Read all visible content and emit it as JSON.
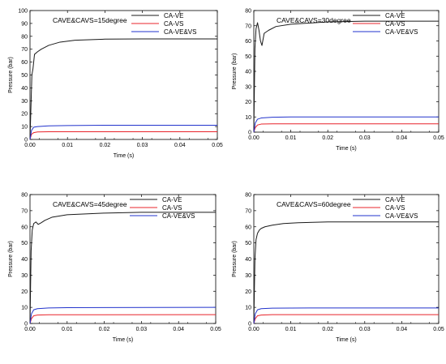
{
  "colors": {
    "CA-VE": "#1a1a1a",
    "CA-VS": "#e8242b",
    "CA-VE&VS": "#2233cc",
    "axis": "#000000"
  },
  "chart_data": [
    {
      "type": "line",
      "annotation": "CAVE&CAVS=15degree",
      "xlabel": "Time (s)",
      "ylabel": "Pressure (bar)",
      "xlim": [
        0,
        0.05
      ],
      "ylim": [
        0,
        100
      ],
      "xticks": [
        "0.00",
        "0.01",
        "0.02",
        "0.03",
        "0.04",
        "0.05"
      ],
      "yticks": [
        "0",
        "10",
        "20",
        "30",
        "40",
        "50",
        "60",
        "70",
        "80",
        "90",
        "100"
      ],
      "legend_position": "top-right",
      "series": [
        {
          "name": "CA-VE",
          "points": [
            [
              0,
              0
            ],
            [
              0.0002,
              20
            ],
            [
              0.0005,
              50
            ],
            [
              0.0008,
              55
            ],
            [
              0.0012,
              66
            ],
            [
              0.002,
              68
            ],
            [
              0.003,
              70
            ],
            [
              0.005,
              73
            ],
            [
              0.008,
              75.5
            ],
            [
              0.012,
              77
            ],
            [
              0.02,
              77.8
            ],
            [
              0.03,
              78
            ],
            [
              0.05,
              78
            ]
          ]
        },
        {
          "name": "CA-VS",
          "points": [
            [
              0,
              0
            ],
            [
              0.0004,
              4
            ],
            [
              0.001,
              5.3
            ],
            [
              0.002,
              5.8
            ],
            [
              0.005,
              6
            ],
            [
              0.05,
              6
            ]
          ]
        },
        {
          "name": "CA-VE&VS",
          "points": [
            [
              0,
              0
            ],
            [
              0.0004,
              7
            ],
            [
              0.001,
              9.5
            ],
            [
              0.002,
              10
            ],
            [
              0.005,
              10.5
            ],
            [
              0.01,
              10.8
            ],
            [
              0.02,
              11
            ],
            [
              0.05,
              11
            ]
          ]
        }
      ]
    },
    {
      "type": "line",
      "annotation": "CAVE&CAVS=30degree",
      "xlabel": "Time (s)",
      "ylabel": "Pressure (bar)",
      "xlim": [
        0,
        0.05
      ],
      "ylim": [
        0,
        80
      ],
      "xticks": [
        "0.00",
        "0.01",
        "0.02",
        "0.03",
        "0.04",
        "0.05"
      ],
      "yticks": [
        "0",
        "10",
        "20",
        "30",
        "40",
        "50",
        "60",
        "70",
        "80"
      ],
      "legend_position": "top-right",
      "series": [
        {
          "name": "CA-VE",
          "points": [
            [
              0,
              0
            ],
            [
              0.0003,
              55
            ],
            [
              0.0006,
              68
            ],
            [
              0.001,
              72
            ],
            [
              0.0014,
              67
            ],
            [
              0.0018,
              60
            ],
            [
              0.0022,
              57
            ],
            [
              0.0028,
              65
            ],
            [
              0.004,
              67
            ],
            [
              0.006,
              69.5
            ],
            [
              0.01,
              71
            ],
            [
              0.02,
              72.5
            ],
            [
              0.03,
              73
            ],
            [
              0.05,
              73
            ]
          ]
        },
        {
          "name": "CA-VS",
          "points": [
            [
              0,
              0
            ],
            [
              0.0004,
              3
            ],
            [
              0.001,
              4.7
            ],
            [
              0.002,
              5.3
            ],
            [
              0.005,
              5.5
            ],
            [
              0.05,
              5.5
            ]
          ]
        },
        {
          "name": "CA-VE&VS",
          "points": [
            [
              0,
              0
            ],
            [
              0.0004,
              6
            ],
            [
              0.001,
              8.5
            ],
            [
              0.002,
              9.3
            ],
            [
              0.005,
              9.8
            ],
            [
              0.01,
              10
            ],
            [
              0.05,
              10
            ]
          ]
        }
      ]
    },
    {
      "type": "line",
      "annotation": "CAVE&CAVS=45degree",
      "xlabel": "Time (s)",
      "ylabel": "Pressure (bar)",
      "xlim": [
        0,
        0.05
      ],
      "ylim": [
        0,
        80
      ],
      "xticks": [
        "0.00",
        "0.01",
        "0.02",
        "0.03",
        "0.04",
        "0.05"
      ],
      "yticks": [
        "0",
        "10",
        "20",
        "30",
        "40",
        "50",
        "60",
        "70",
        "80"
      ],
      "legend_position": "top-right",
      "series": [
        {
          "name": "CA-VE",
          "points": [
            [
              0,
              0
            ],
            [
              0.0003,
              45
            ],
            [
              0.0006,
              58
            ],
            [
              0.001,
              62
            ],
            [
              0.0016,
              63
            ],
            [
              0.0022,
              61.5
            ],
            [
              0.003,
              62.5
            ],
            [
              0.004,
              64
            ],
            [
              0.006,
              66
            ],
            [
              0.01,
              67.5
            ],
            [
              0.02,
              68.5
            ],
            [
              0.03,
              69
            ],
            [
              0.05,
              69
            ]
          ]
        },
        {
          "name": "CA-VS",
          "points": [
            [
              0,
              0
            ],
            [
              0.0004,
              3
            ],
            [
              0.001,
              4.8
            ],
            [
              0.002,
              5.2
            ],
            [
              0.005,
              5.4
            ],
            [
              0.05,
              5.5
            ]
          ]
        },
        {
          "name": "CA-VE&VS",
          "points": [
            [
              0,
              0
            ],
            [
              0.0004,
              6
            ],
            [
              0.001,
              8.5
            ],
            [
              0.002,
              9.2
            ],
            [
              0.005,
              9.6
            ],
            [
              0.01,
              9.8
            ],
            [
              0.05,
              10
            ]
          ]
        }
      ]
    },
    {
      "type": "line",
      "annotation": "CAVE&CAVS=60degree",
      "xlabel": "Time (s)",
      "ylabel": "Pressure (bar)",
      "xlim": [
        0,
        0.05
      ],
      "ylim": [
        0,
        80
      ],
      "xticks": [
        "0.00",
        "0.01",
        "0.02",
        "0.03",
        "0.04",
        "0.05"
      ],
      "yticks": [
        "0",
        "10",
        "20",
        "30",
        "40",
        "50",
        "60",
        "70",
        "80"
      ],
      "legend_position": "top-right",
      "series": [
        {
          "name": "CA-VE",
          "points": [
            [
              0,
              0
            ],
            [
              0.0003,
              40
            ],
            [
              0.0006,
              52
            ],
            [
              0.001,
              56
            ],
            [
              0.0015,
              58
            ],
            [
              0.002,
              59
            ],
            [
              0.003,
              60
            ],
            [
              0.005,
              61
            ],
            [
              0.008,
              62
            ],
            [
              0.012,
              62.5
            ],
            [
              0.02,
              63
            ],
            [
              0.05,
              63
            ]
          ]
        },
        {
          "name": "CA-VS",
          "points": [
            [
              0,
              0
            ],
            [
              0.0004,
              3
            ],
            [
              0.001,
              4.8
            ],
            [
              0.002,
              5.2
            ],
            [
              0.005,
              5.5
            ],
            [
              0.05,
              5.5
            ]
          ]
        },
        {
          "name": "CA-VE&VS",
          "points": [
            [
              0,
              0
            ],
            [
              0.0004,
              6
            ],
            [
              0.001,
              8.5
            ],
            [
              0.002,
              9.2
            ],
            [
              0.005,
              9.5
            ],
            [
              0.015,
              9.6
            ],
            [
              0.05,
              9.6
            ]
          ]
        }
      ]
    }
  ]
}
